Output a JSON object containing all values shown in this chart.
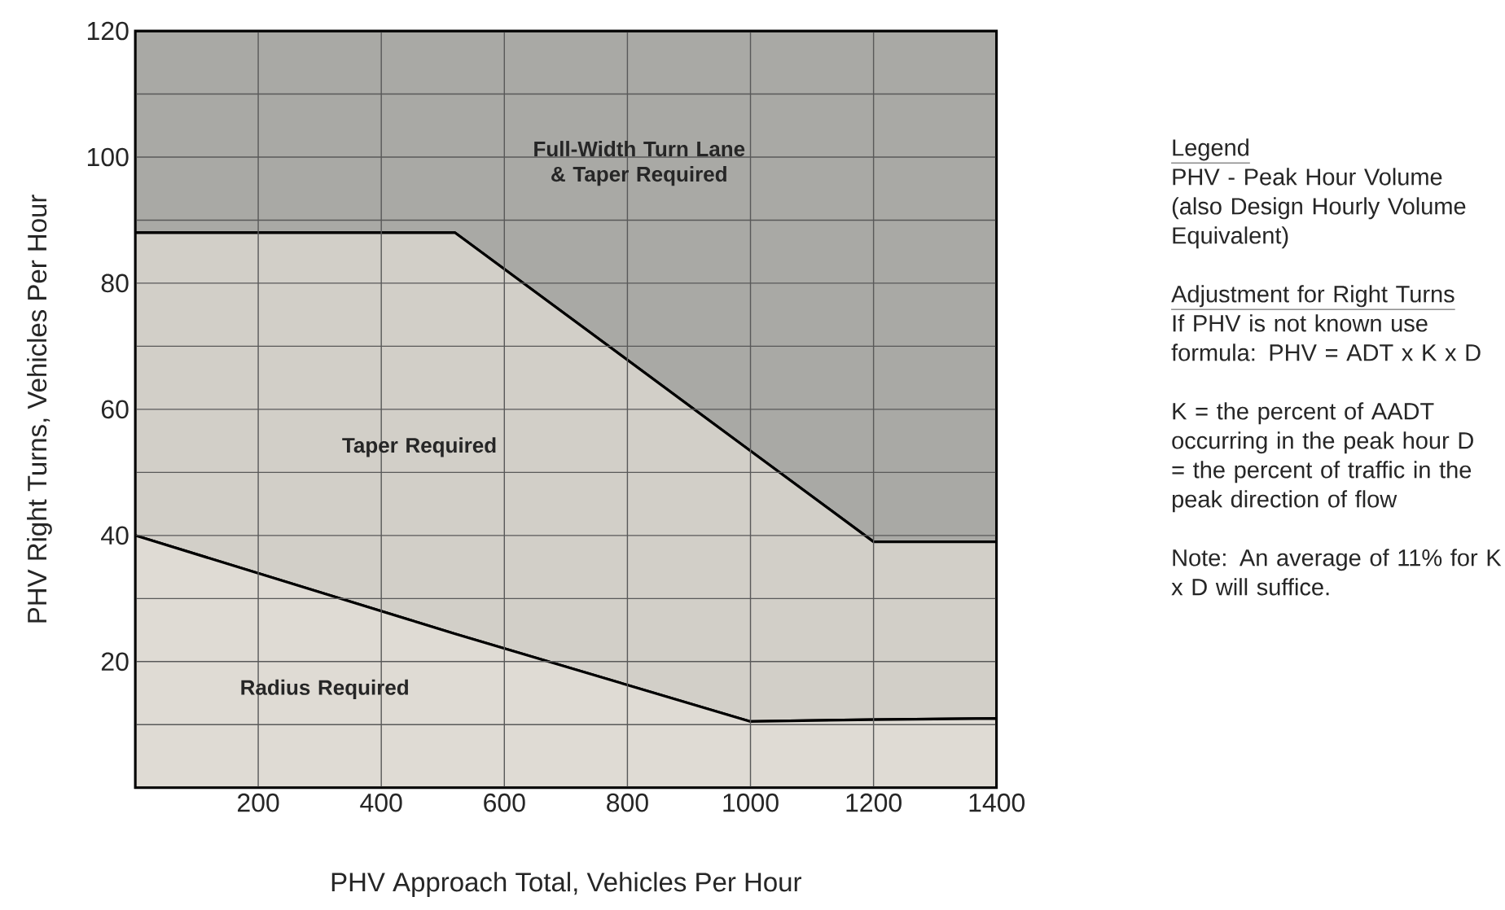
{
  "chart_data": {
    "type": "area",
    "xlabel": "PHV Approach Total, Vehicles Per Hour",
    "ylabel": "PHV Right Turns, Vehicles Per Hour",
    "xlim": [
      0,
      1400
    ],
    "ylim": [
      0,
      120
    ],
    "xticks": [
      200,
      400,
      600,
      800,
      1000,
      1200,
      1400
    ],
    "yticks": [
      {
        "value": 10,
        "label": null
      },
      20,
      {
        "value": 30,
        "label": null
      },
      40,
      {
        "value": 50,
        "label": null
      },
      60,
      {
        "value": 70,
        "label": null
      },
      80,
      {
        "value": 90,
        "label": null
      },
      100,
      {
        "value": 110,
        "label": null
      },
      120
    ],
    "grid": true,
    "stacked": true,
    "x": [
      0,
      520,
      1000,
      1200,
      1400
    ],
    "series": [
      {
        "color": "#dfdbd4",
        "values": [
          40,
          24.4,
          10.5,
          10.8,
          11
        ]
      },
      {
        "color": "#d2cfc8",
        "values": [
          48,
          63.6,
          42.9,
          28.2,
          28
        ]
      },
      {
        "color": "#a9a9a5",
        "values": [
          32,
          32,
          66.6,
          81,
          81
        ]
      }
    ],
    "annotations": [
      "Full-Width Turn Lane & Taper Required",
      "Taper Required",
      "Radius Required",
      "Legend",
      "PHV - Peak Hour Volume (also Design Hourly Volume Equivalent)",
      "Adjustment for Right Turns",
      "If PHV is not known use formula: PHV = ADT x K x D",
      "K = the percent of AADT occurring in the peak hour D =  the percent of traffic in the peak direction of flow",
      "Note: An average of 11% for K x D will suffice."
    ]
  }
}
